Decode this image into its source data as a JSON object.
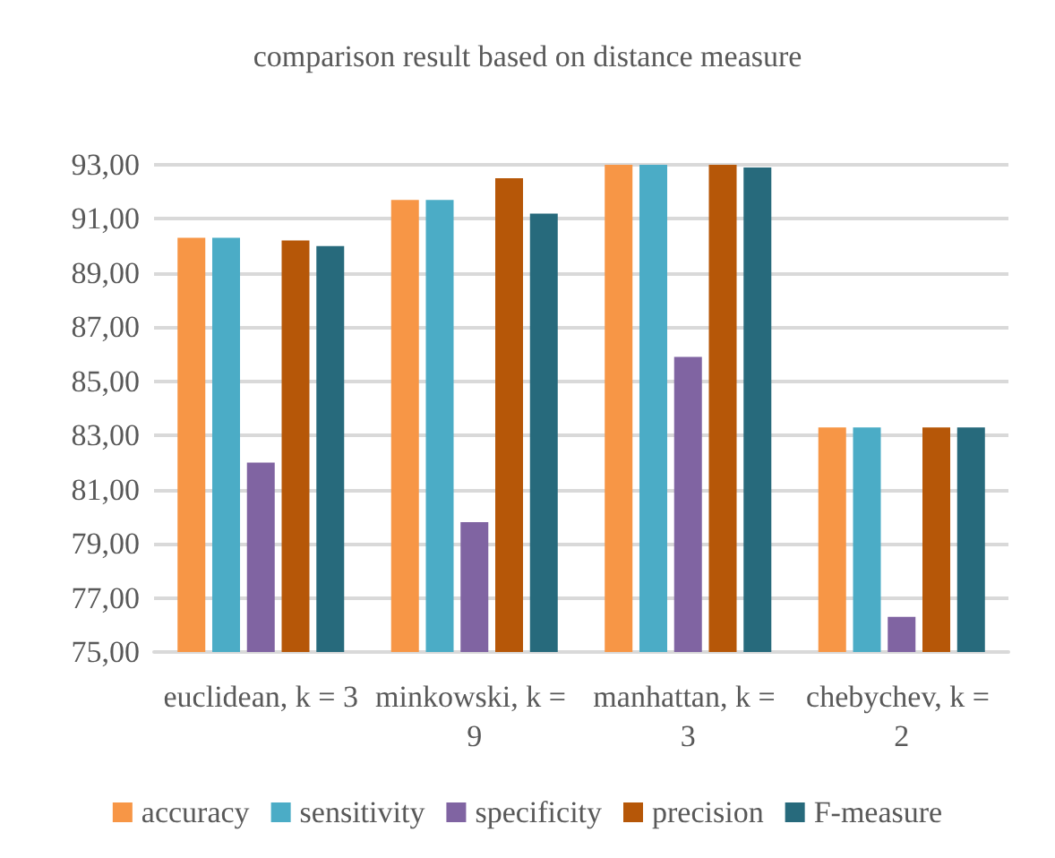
{
  "chart_data": {
    "type": "bar",
    "title": "comparison result based on distance measure",
    "categories": [
      "euclidean, k = 3",
      "minkowski, k = 9",
      "manhattan, k = 3",
      "chebychev, k = 2"
    ],
    "series": [
      {
        "name": "accuracy",
        "color": "#f79646",
        "values": [
          90.3,
          91.7,
          93.0,
          83.3
        ]
      },
      {
        "name": "sensitivity",
        "color": "#4bacc6",
        "values": [
          90.3,
          91.7,
          93.0,
          83.3
        ]
      },
      {
        "name": "specificity",
        "color": "#8064a2",
        "values": [
          82.0,
          79.8,
          85.9,
          76.3
        ]
      },
      {
        "name": "precision",
        "color": "#b65708",
        "values": [
          90.2,
          92.5,
          93.0,
          83.3
        ]
      },
      {
        "name": "F-measure",
        "color": "#276a7c",
        "values": [
          90.0,
          91.2,
          92.9,
          83.3
        ]
      }
    ],
    "ylim": [
      75,
      93
    ],
    "yticks": [
      {
        "value": 75,
        "label": "75,00"
      },
      {
        "value": 77,
        "label": "77,00"
      },
      {
        "value": 79,
        "label": "79,00"
      },
      {
        "value": 81,
        "label": "81,00"
      },
      {
        "value": 83,
        "label": "83,00"
      },
      {
        "value": 85,
        "label": "85,00"
      },
      {
        "value": 87,
        "label": "87,00"
      },
      {
        "value": 89,
        "label": "89,00"
      },
      {
        "value": 91,
        "label": "91,00"
      },
      {
        "value": 93,
        "label": "93,00"
      }
    ],
    "grid": "y",
    "legend": "bottom"
  }
}
